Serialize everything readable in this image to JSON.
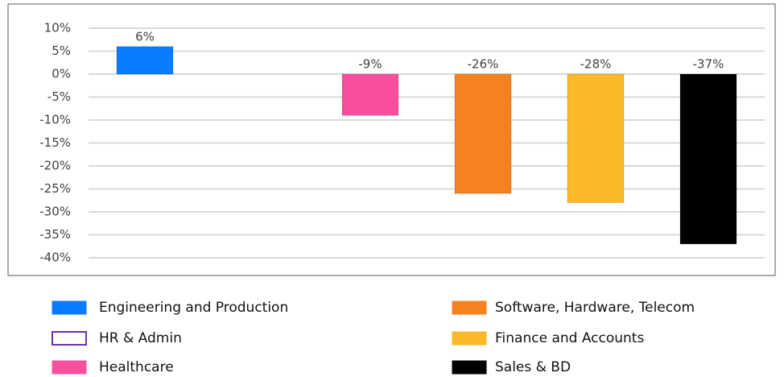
{
  "chart_data": {
    "type": "bar",
    "categories": [
      "Engineering and Production",
      "HR & Admin",
      "Healthcare",
      "Software, Hardware, Telecom",
      "Finance and Accounts",
      "Sales & BD"
    ],
    "values": [
      6,
      null,
      -9,
      -26,
      -28,
      -37
    ],
    "value_labels": [
      "6%",
      null,
      "-9%",
      "-26%",
      "-28%",
      "-37%"
    ],
    "colors": [
      "#0a7cff",
      "#7030a0",
      "#f74f9e",
      "#f5821f",
      "#fbb829",
      "#000000"
    ],
    "ylim": [
      -40,
      10
    ],
    "yticks": [
      {
        "value": 10,
        "label": "10%"
      },
      {
        "value": 5,
        "label": "5%"
      },
      {
        "value": 0,
        "label": "0%"
      },
      {
        "value": -5,
        "label": "-5%"
      },
      {
        "value": -10,
        "label": "-10%"
      },
      {
        "value": -15,
        "label": "-15%"
      },
      {
        "value": -20,
        "label": "-20%"
      },
      {
        "value": -25,
        "label": "-25%"
      },
      {
        "value": -30,
        "label": "-30%"
      },
      {
        "value": -35,
        "label": "-35%"
      },
      {
        "value": -40,
        "label": "-40%"
      }
    ],
    "grid": true
  }
}
